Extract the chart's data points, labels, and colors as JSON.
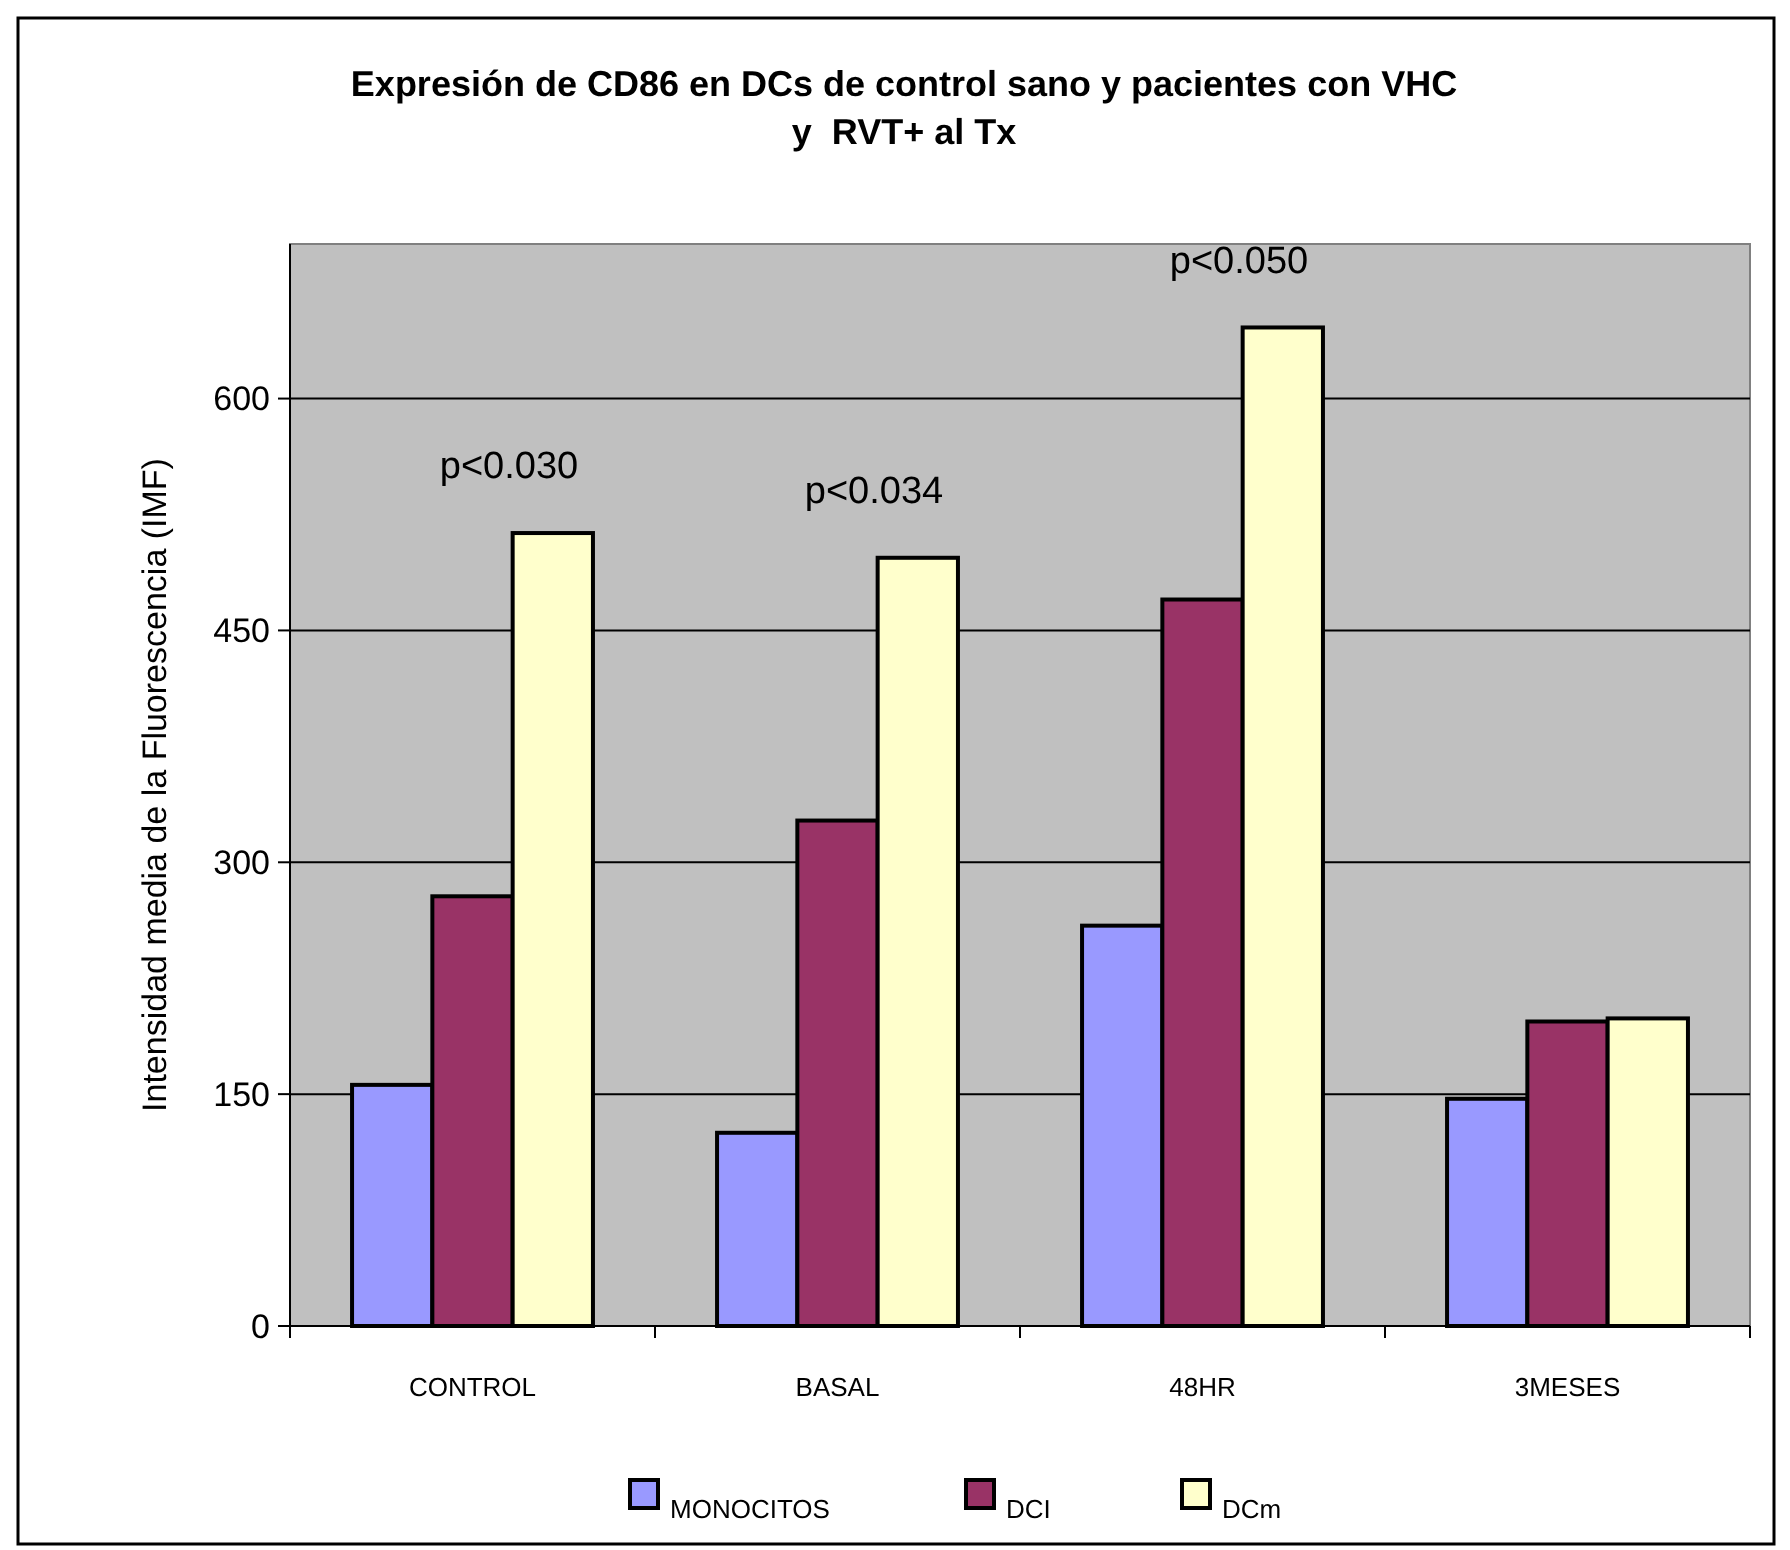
{
  "chart_data": {
    "type": "bar",
    "title": "Expresión de CD86 en DCs de control sano y pacientes con VHC\ny  RVT+ al Tx",
    "ylabel": "Intensidad media de la Fluorescencia (IMF)",
    "categories": [
      "CONTROL",
      "BASAL",
      "48HR",
      "3MESES"
    ],
    "series": [
      {
        "name": "MONOCITOS",
        "color": "#9999ff",
        "values": [
          156,
          125,
          259,
          147
        ]
      },
      {
        "name": "DCI",
        "color": "#993366",
        "values": [
          278,
          327,
          470,
          197
        ]
      },
      {
        "name": "DCm",
        "color": "#ffffcc",
        "values": [
          513,
          497,
          646,
          199
        ]
      }
    ],
    "ylim": [
      0,
      700
    ],
    "yticks": [
      0,
      150,
      300,
      450,
      600
    ],
    "grid": "y",
    "legend": "bottom",
    "annotations": [
      "p<0.030",
      "p<0.034",
      "p<0.050"
    ]
  }
}
